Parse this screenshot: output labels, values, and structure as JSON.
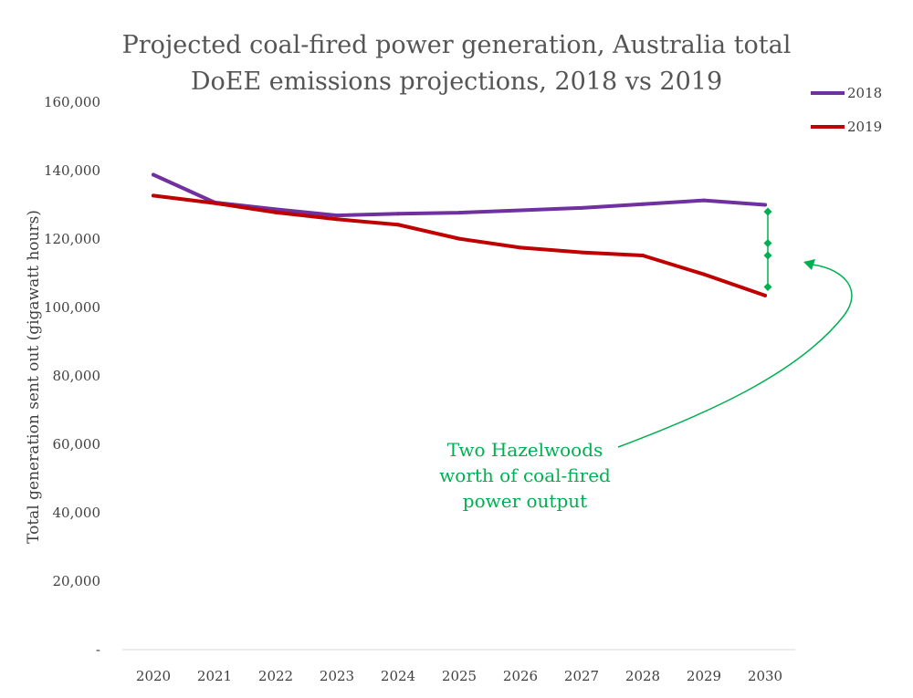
{
  "chart_data": {
    "type": "line",
    "title": "Projected coal-fired power generation, Australia total",
    "subtitle": "DoEE emissions projections, 2018 vs 2019",
    "ylabel": "Total generation sent out (gigawatt hours)",
    "xlabel": "",
    "ylim": [
      0,
      160000
    ],
    "y_ticks": [
      "-",
      "20,000",
      "40,000",
      "60,000",
      "80,000",
      "100,000",
      "120,000",
      "140,000",
      "160,000"
    ],
    "categories": [
      "2020",
      "2021",
      "2022",
      "2023",
      "2024",
      "2025",
      "2026",
      "2027",
      "2028",
      "2029",
      "2030"
    ],
    "series": [
      {
        "name": "2018",
        "color": "#7030a0",
        "values": [
          138800,
          130700,
          128700,
          126900,
          127400,
          127700,
          128400,
          129100,
          130200,
          131300,
          130000
        ]
      },
      {
        "name": "2019",
        "color": "#c00000",
        "values": [
          132700,
          130500,
          127800,
          125800,
          124200,
          120100,
          117500,
          116100,
          115200,
          109700,
          103500
        ]
      }
    ],
    "grid": false,
    "legend_position": "top-right",
    "annotation": {
      "lines": [
        "Two Hazelwoods",
        "worth of coal-fired",
        "power output"
      ],
      "color": "#00b050",
      "bracket_x": "2030",
      "bracket_values": [
        128000,
        118800,
        115200,
        106000
      ]
    }
  }
}
